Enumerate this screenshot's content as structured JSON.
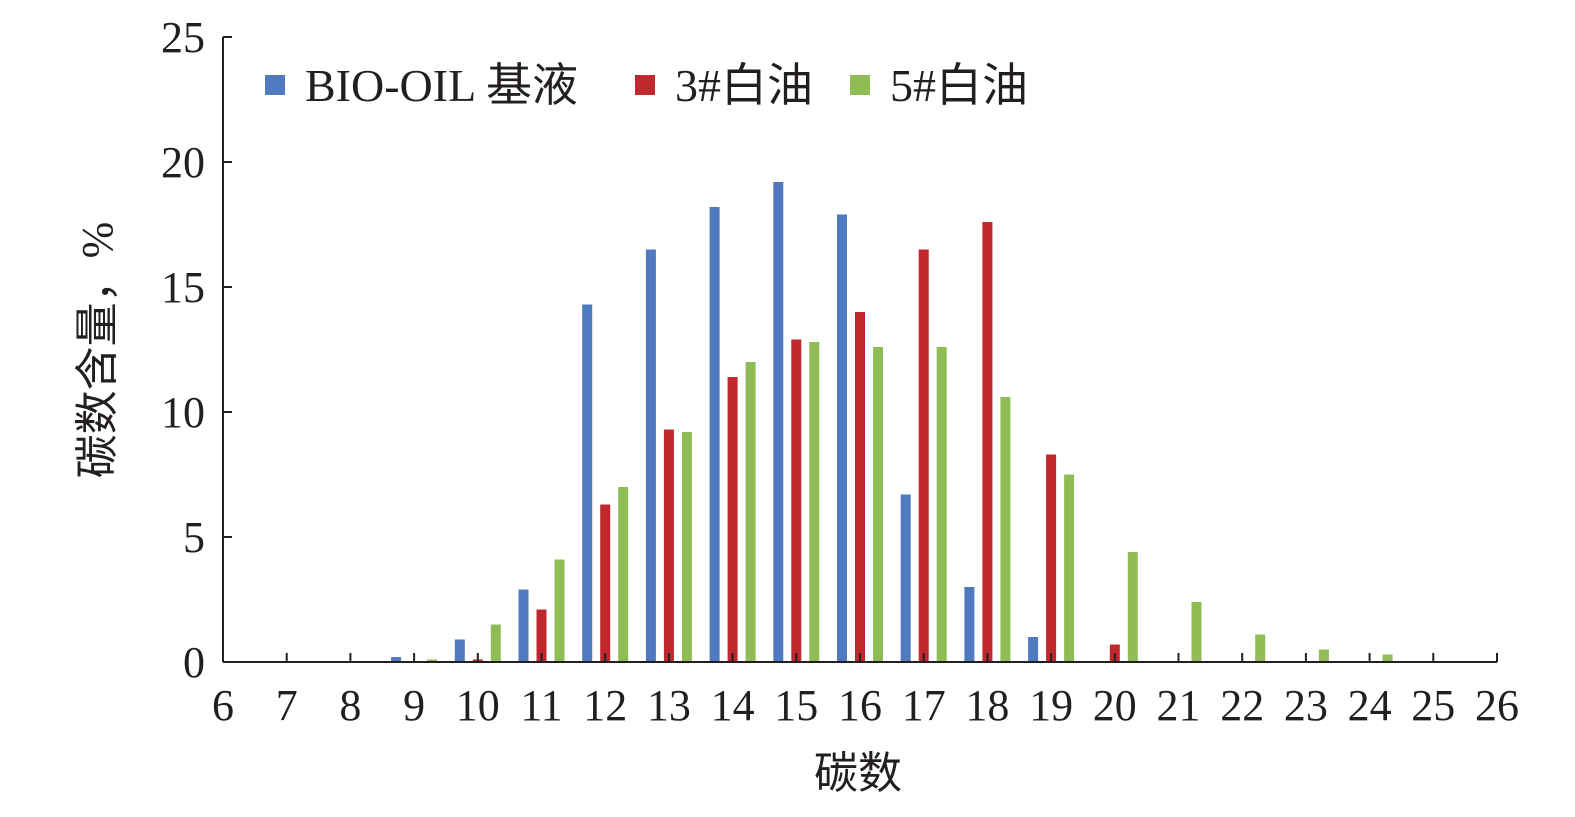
{
  "chart_data": {
    "type": "bar",
    "xlabel": "碳数",
    "ylabel": "碳数含量，%",
    "ylim": [
      0,
      25
    ],
    "yticks": [
      0,
      5,
      10,
      15,
      20,
      25
    ],
    "xticks": [
      6,
      7,
      8,
      9,
      10,
      11,
      12,
      13,
      14,
      15,
      16,
      17,
      18,
      19,
      20,
      21,
      22,
      23,
      24,
      25,
      26
    ],
    "categories": [
      6,
      7,
      8,
      9,
      10,
      11,
      12,
      13,
      14,
      15,
      16,
      17,
      18,
      19,
      20,
      21,
      22,
      23,
      24,
      25
    ],
    "legend_position": "top-left",
    "grid": false,
    "series": [
      {
        "name": "BIO-OIL 基液",
        "color": "#4f7ac0",
        "values": [
          0,
          0,
          0,
          0.2,
          0.9,
          2.9,
          14.3,
          16.5,
          18.2,
          19.2,
          17.9,
          6.7,
          3.0,
          1.0,
          0,
          0,
          0,
          0,
          0,
          0
        ]
      },
      {
        "name": "3#白油",
        "color": "#c0282d",
        "values": [
          0,
          0,
          0,
          0,
          0.1,
          2.1,
          6.3,
          9.3,
          11.4,
          12.9,
          14.0,
          16.5,
          17.6,
          8.3,
          0.7,
          0,
          0,
          0,
          0,
          0
        ]
      },
      {
        "name": "5#白油",
        "color": "#8fbc55",
        "values": [
          0,
          0,
          0,
          0.1,
          1.5,
          4.1,
          7.0,
          9.2,
          12.0,
          12.8,
          12.6,
          12.6,
          10.6,
          7.5,
          4.4,
          2.4,
          1.1,
          0.5,
          0.3,
          0
        ]
      }
    ]
  }
}
